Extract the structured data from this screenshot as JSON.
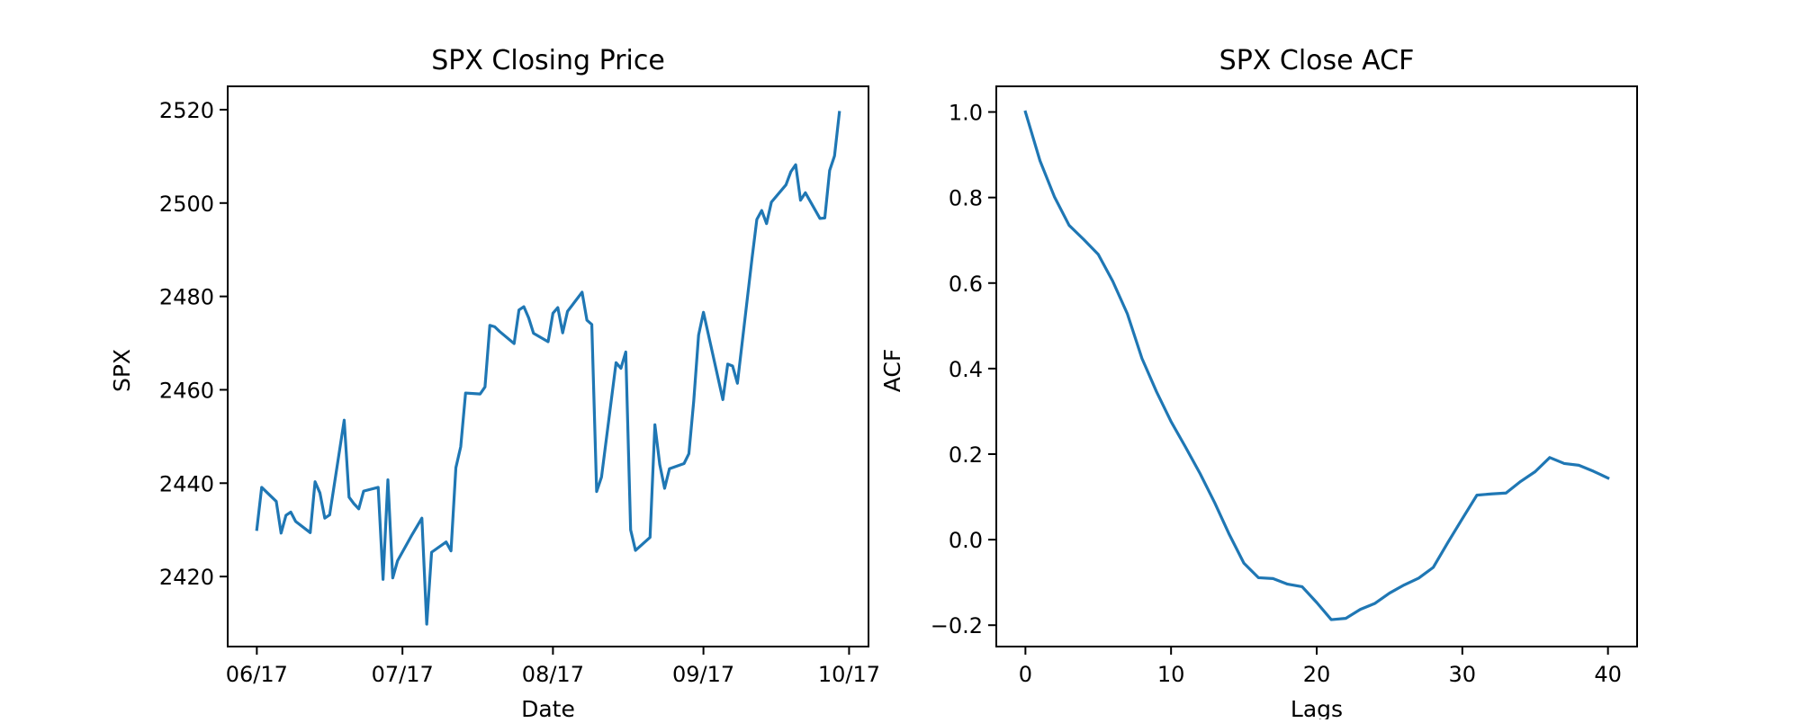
{
  "chart_data": [
    {
      "type": "line",
      "title": "SPX Closing Price",
      "xlabel": "Date",
      "ylabel": "SPX",
      "x_tick_labels": [
        "06/17",
        "07/17",
        "08/17",
        "09/17",
        "10/17"
      ],
      "x_tick_dates": [
        "2017-06-01",
        "2017-07-01",
        "2017-08-01",
        "2017-09-01",
        "2017-10-01"
      ],
      "y_ticks": [
        2420,
        2440,
        2460,
        2480,
        2500,
        2520
      ],
      "xlim": [
        "2017-05-26",
        "2017-10-05"
      ],
      "ylim": [
        2405,
        2525
      ],
      "grid": false,
      "color": "#1f77b4",
      "series": [
        {
          "x": [
            "2017-06-01",
            "2017-06-02",
            "2017-06-05",
            "2017-06-06",
            "2017-06-07",
            "2017-06-08",
            "2017-06-09",
            "2017-06-12",
            "2017-06-13",
            "2017-06-14",
            "2017-06-15",
            "2017-06-16",
            "2017-06-19",
            "2017-06-20",
            "2017-06-21",
            "2017-06-22",
            "2017-06-23",
            "2017-06-26",
            "2017-06-27",
            "2017-06-28",
            "2017-06-29",
            "2017-06-30",
            "2017-07-03",
            "2017-07-05",
            "2017-07-06",
            "2017-07-07",
            "2017-07-10",
            "2017-07-11",
            "2017-07-12",
            "2017-07-13",
            "2017-07-14",
            "2017-07-17",
            "2017-07-18",
            "2017-07-19",
            "2017-07-20",
            "2017-07-21",
            "2017-07-24",
            "2017-07-25",
            "2017-07-26",
            "2017-07-27",
            "2017-07-28",
            "2017-07-31",
            "2017-08-01",
            "2017-08-02",
            "2017-08-03",
            "2017-08-04",
            "2017-08-07",
            "2017-08-08",
            "2017-08-09",
            "2017-08-10",
            "2017-08-11",
            "2017-08-14",
            "2017-08-15",
            "2017-08-16",
            "2017-08-17",
            "2017-08-18",
            "2017-08-21",
            "2017-08-22",
            "2017-08-23",
            "2017-08-24",
            "2017-08-25",
            "2017-08-28",
            "2017-08-29",
            "2017-08-30",
            "2017-08-31",
            "2017-09-01",
            "2017-09-05",
            "2017-09-06",
            "2017-09-07",
            "2017-09-08",
            "2017-09-11",
            "2017-09-12",
            "2017-09-13",
            "2017-09-14",
            "2017-09-15",
            "2017-09-18",
            "2017-09-19",
            "2017-09-20",
            "2017-09-21",
            "2017-09-22",
            "2017-09-25",
            "2017-09-26",
            "2017-09-27",
            "2017-09-28",
            "2017-09-29"
          ],
          "y": [
            2430.1,
            2439.1,
            2436.1,
            2429.3,
            2433.1,
            2433.8,
            2431.8,
            2429.4,
            2440.3,
            2437.9,
            2432.5,
            2433.2,
            2453.5,
            2437.0,
            2435.6,
            2434.5,
            2438.3,
            2439.1,
            2419.4,
            2440.7,
            2419.7,
            2423.4,
            2429.0,
            2432.5,
            2409.8,
            2425.2,
            2427.4,
            2425.5,
            2443.3,
            2447.8,
            2459.3,
            2459.1,
            2460.6,
            2473.8,
            2473.5,
            2472.5,
            2469.9,
            2477.1,
            2477.8,
            2475.4,
            2472.1,
            2470.3,
            2476.4,
            2477.6,
            2472.2,
            2476.8,
            2480.9,
            2474.9,
            2474.0,
            2438.2,
            2441.3,
            2465.8,
            2464.6,
            2468.1,
            2430.0,
            2425.6,
            2428.4,
            2452.5,
            2444.0,
            2438.9,
            2443.1,
            2444.2,
            2446.3,
            2457.6,
            2471.7,
            2476.6,
            2457.9,
            2465.5,
            2465.1,
            2461.4,
            2488.1,
            2496.5,
            2498.4,
            2495.6,
            2500.2,
            2503.9,
            2506.7,
            2508.2,
            2500.6,
            2502.2,
            2496.7,
            2496.8,
            2507.0,
            2510.1,
            2519.4
          ]
        }
      ]
    },
    {
      "type": "line",
      "title": "SPX Close ACF",
      "xlabel": "Lags",
      "ylabel": "ACF",
      "x_ticks": [
        0,
        10,
        20,
        30,
        40
      ],
      "y_ticks": [
        -0.2,
        0.0,
        0.2,
        0.4,
        0.6,
        0.8,
        1.0
      ],
      "y_tick_labels": [
        "−0.2",
        "0.0",
        "0.2",
        "0.4",
        "0.6",
        "0.8",
        "1.0"
      ],
      "xlim": [
        -2,
        42
      ],
      "ylim": [
        -0.25,
        1.06
      ],
      "grid": false,
      "color": "#1f77b4",
      "series": [
        {
          "x": [
            0,
            1,
            2,
            3,
            4,
            5,
            6,
            7,
            8,
            9,
            10,
            11,
            12,
            13,
            14,
            15,
            16,
            17,
            18,
            19,
            20,
            21,
            22,
            23,
            24,
            25,
            26,
            27,
            28,
            29,
            30,
            31,
            32,
            33,
            34,
            35,
            36,
            37,
            38,
            39,
            40
          ],
          "y": [
            1.0,
            0.886,
            0.801,
            0.735,
            0.702,
            0.667,
            0.604,
            0.528,
            0.424,
            0.346,
            0.276,
            0.216,
            0.154,
            0.086,
            0.012,
            -0.055,
            -0.089,
            -0.091,
            -0.104,
            -0.11,
            -0.147,
            -0.187,
            -0.184,
            -0.163,
            -0.149,
            -0.125,
            -0.106,
            -0.09,
            -0.065,
            -0.007,
            0.049,
            0.104,
            0.107,
            0.109,
            0.136,
            0.159,
            0.192,
            0.178,
            0.174,
            0.16,
            0.144
          ]
        }
      ]
    }
  ]
}
